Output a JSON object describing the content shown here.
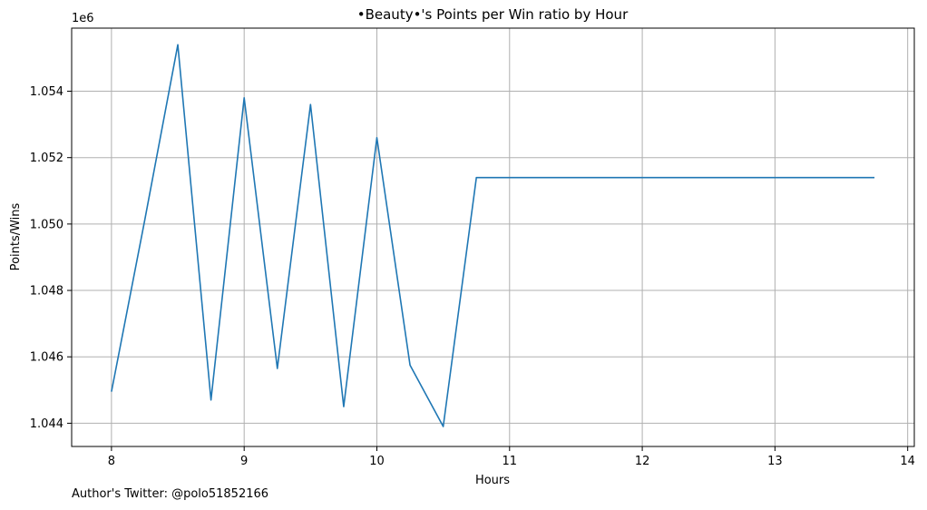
{
  "chart_data": {
    "type": "line",
    "title": "•Beauty•'s Points per Win ratio by Hour",
    "xlabel": "Hours",
    "ylabel": "Points/Wins",
    "y_offset_label": "1e6",
    "xlim": [
      7.7,
      14.05
    ],
    "ylim": [
      1043.3,
      1055.9
    ],
    "x_ticks": [
      8,
      9,
      10,
      11,
      12,
      13,
      14
    ],
    "x_tick_labels": [
      "8",
      "9",
      "10",
      "11",
      "12",
      "13",
      "14"
    ],
    "y_ticks": [
      1044,
      1046,
      1048,
      1050,
      1052,
      1054
    ],
    "y_tick_labels": [
      "1.044",
      "1.046",
      "1.048",
      "1.050",
      "1.052",
      "1.054"
    ],
    "grid": true,
    "line_color": "#1f77b4",
    "series": [
      {
        "x": [
          8,
          8.25,
          8.5,
          8.75,
          9,
          9.25,
          9.5,
          9.75,
          10,
          10.25,
          10.5,
          10.75,
          11,
          11.25,
          11.5,
          11.75,
          12,
          12.25,
          12.5,
          12.75,
          13,
          13.25,
          13.5,
          13.75
        ],
        "values": [
          1044.95,
          1050.1,
          1055.4,
          1044.7,
          1053.8,
          1045.65,
          1053.6,
          1044.5,
          1052.6,
          1045.75,
          1043.9,
          1051.4,
          1051.4,
          1051.4,
          1051.4,
          1051.4,
          1051.4,
          1051.4,
          1051.4,
          1051.4,
          1051.4,
          1051.4,
          1051.4,
          1051.4
        ]
      }
    ]
  },
  "footer": {
    "note": "Author's Twitter: @polo51852166"
  }
}
